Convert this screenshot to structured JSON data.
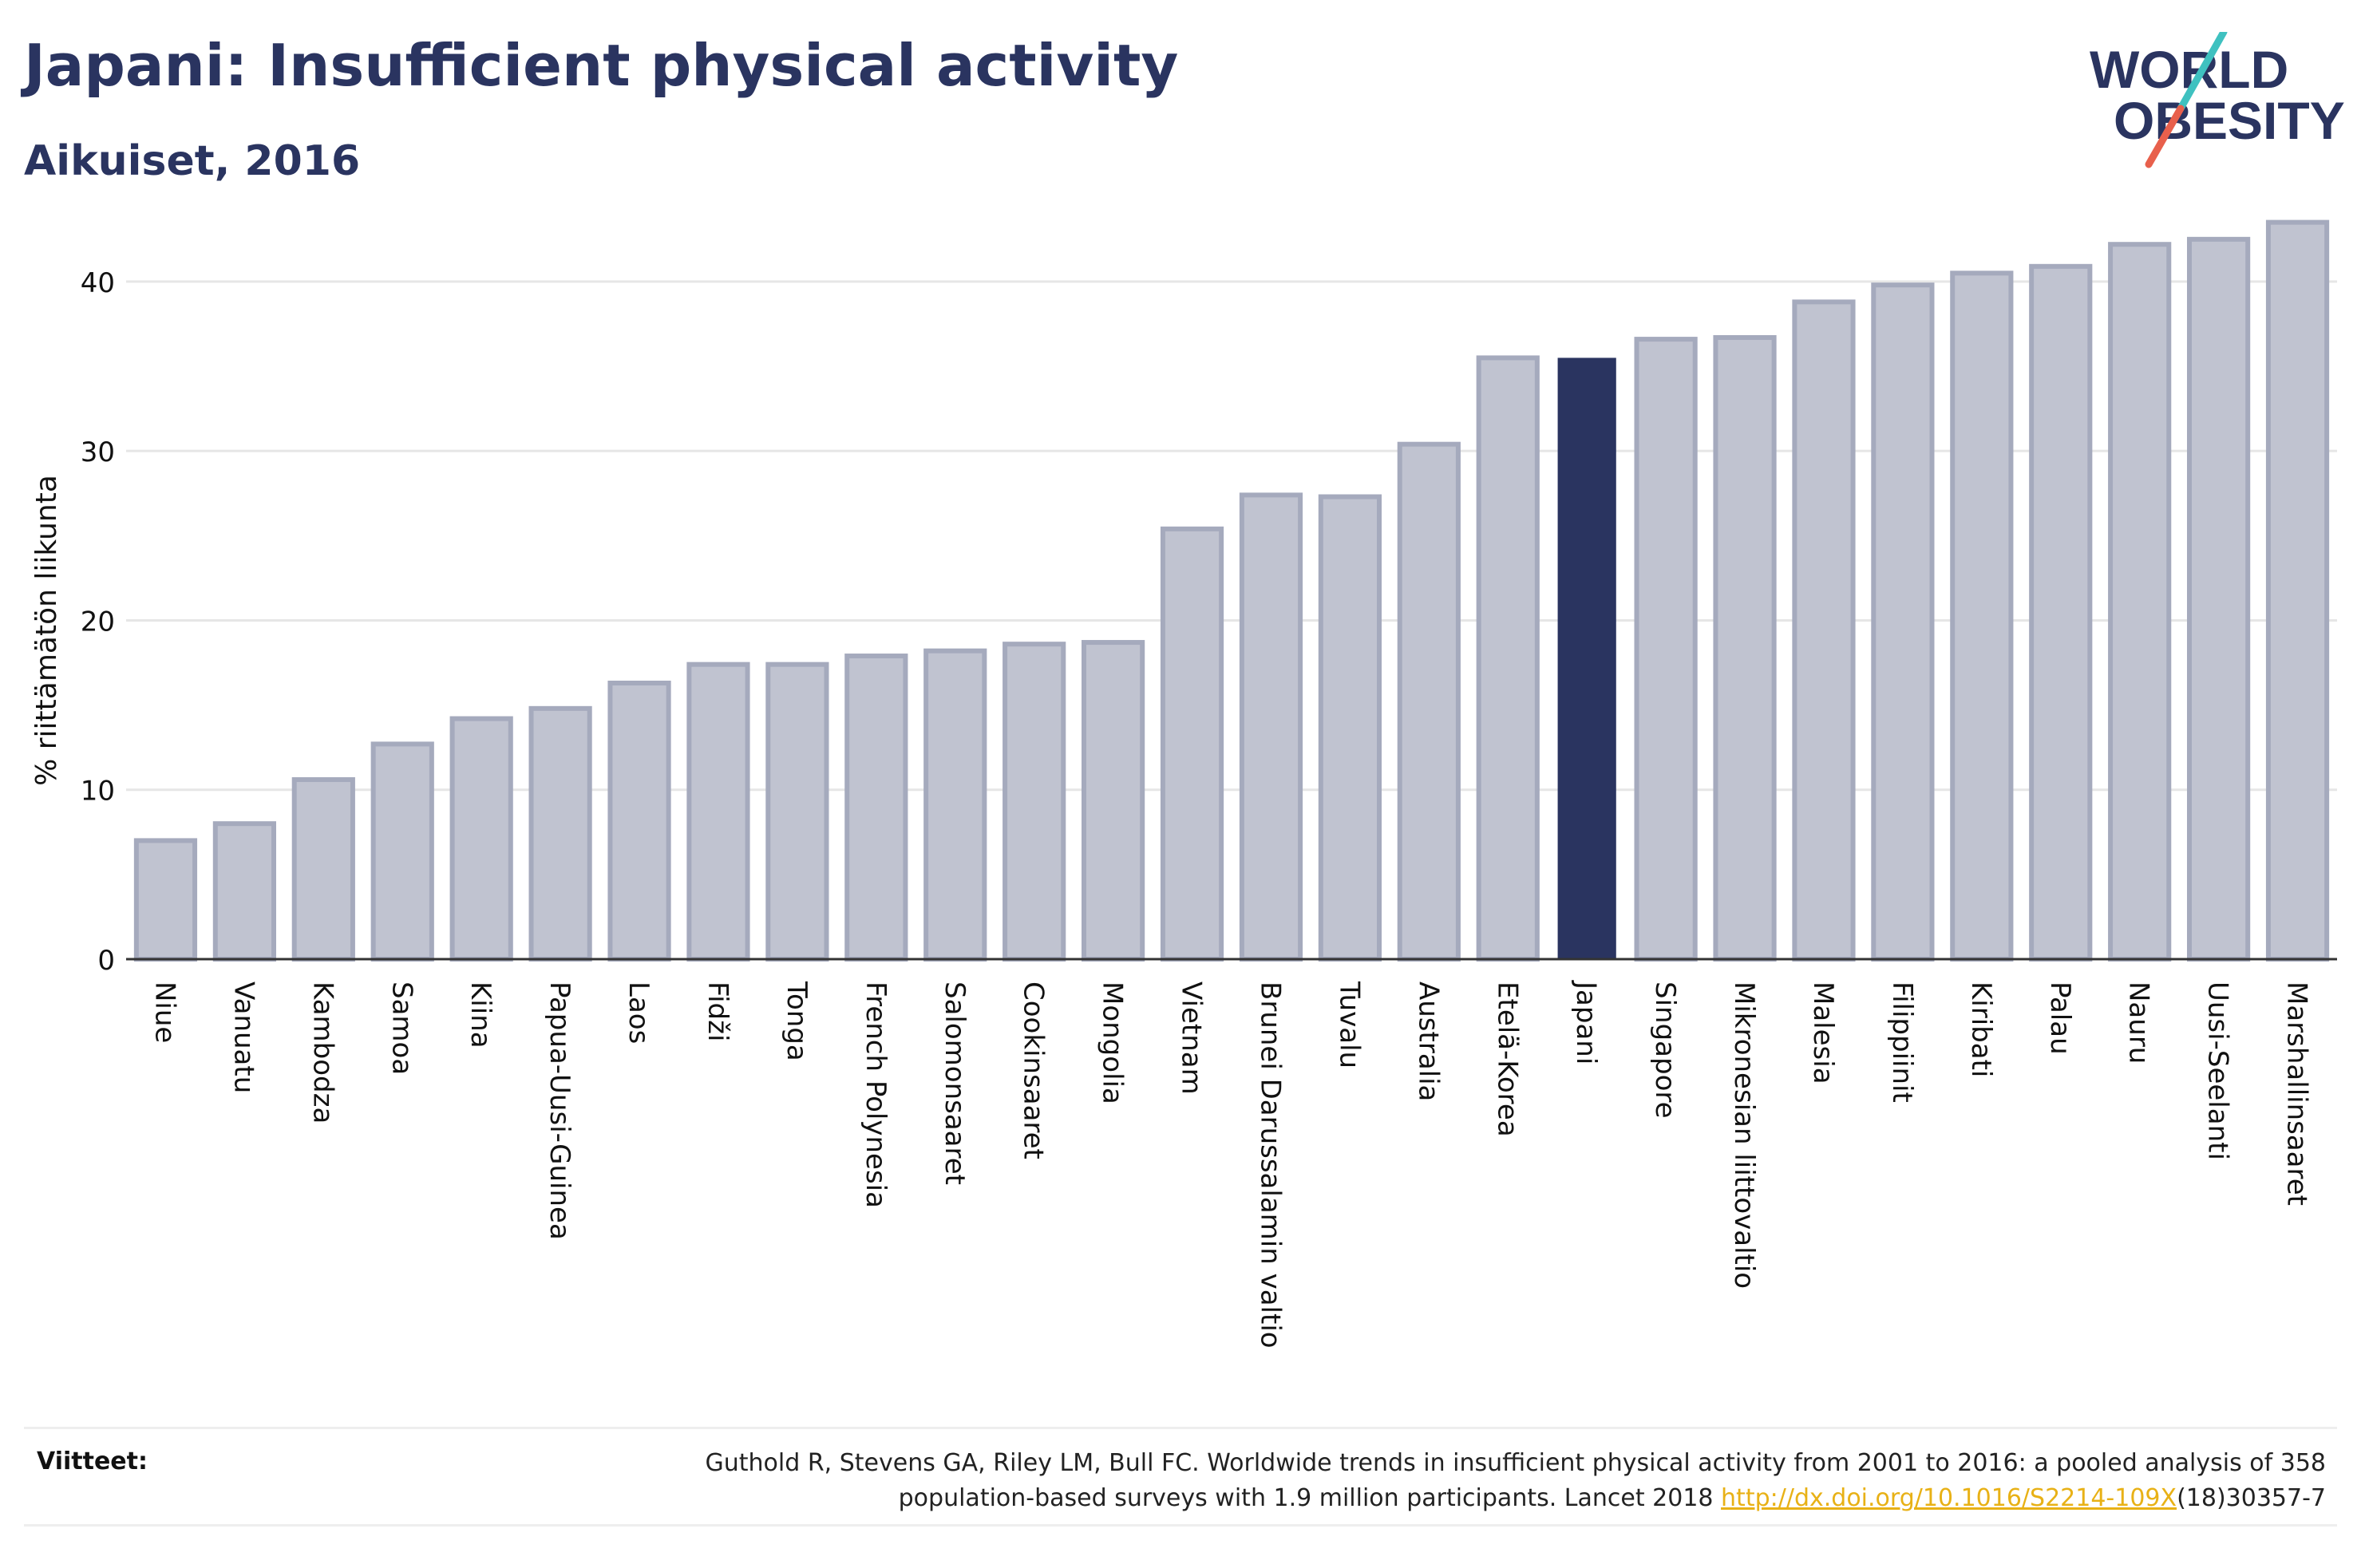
{
  "header": {
    "title": "Japani: Insufficient physical activity",
    "subtitle": "Aikuiset, 2016"
  },
  "logo": {
    "line1": "WORLD",
    "line2": "OBESITY",
    "slash_colors": [
      "#3fc1c0",
      "#e8604c"
    ]
  },
  "chart_data": {
    "type": "bar",
    "title": "Japani: Insufficient physical activity",
    "subtitle": "Aikuiset, 2016",
    "xlabel": "",
    "ylabel": "% riittämätön liikunta",
    "ylim": [
      0,
      44
    ],
    "yticks": [
      0,
      10,
      20,
      30,
      40
    ],
    "grid": true,
    "highlight": "Japani",
    "colors": {
      "bar": "#c0c3d0",
      "bar_edge": "#a5aabd",
      "highlight": "#2a3460",
      "grid": "#e6e6e6",
      "axis": "#333333"
    },
    "categories": [
      "Niue",
      "Vanuatu",
      "Kambodza",
      "Samoa",
      "Kiina",
      "Papua-Uusi-Guinea",
      "Laos",
      "Fidži",
      "Tonga",
      "French Polynesia",
      "Salomonsaaret",
      "Cookinsaaret",
      "Mongolia",
      "Vietnam",
      "Brunei Darussalamin valtio",
      "Tuvalu",
      "Australia",
      "Etelä-Korea",
      "Japani",
      "Singapore",
      "Mikronesian liittovaltio",
      "Malesia",
      "Filippiinit",
      "Kiribati",
      "Palau",
      "Nauru",
      "Uusi-Seelanti",
      "Marshallinsaaret"
    ],
    "values": [
      7.0,
      8.0,
      10.6,
      12.7,
      14.2,
      14.8,
      16.3,
      17.4,
      17.4,
      17.9,
      18.2,
      18.6,
      18.7,
      25.4,
      27.4,
      27.3,
      30.4,
      35.5,
      35.5,
      36.6,
      36.7,
      38.8,
      39.8,
      40.5,
      40.9,
      42.2,
      42.5,
      43.5
    ]
  },
  "footer": {
    "refs_label": "Viitteet:",
    "refs_line1": "Guthold R, Stevens GA, Riley LM, Bull FC. Worldwide trends in insufficient physical activity from 2001 to 2016: a pooled analysis of 358",
    "refs_line2_pre": "population-based surveys with 1.9 million participants. Lancet 2018 ",
    "refs_link": "http://dx.doi.org/10.1016/S2214-109X",
    "refs_line2_post": "(18)30357-7"
  }
}
